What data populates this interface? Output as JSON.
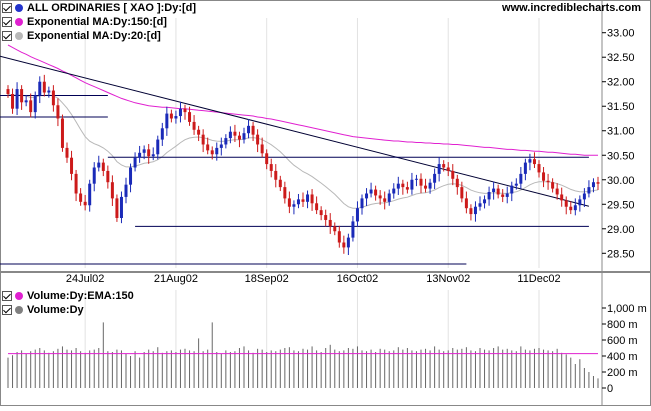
{
  "site": "www.incrediblecharts.com",
  "legend_price": [
    {
      "label": "ALL ORDINARIES [ XAO ]:Dy:[d]",
      "color": "#2233cc",
      "checked": true
    },
    {
      "label": "Exponential MA:Dy:150:[d]",
      "color": "#e020d0",
      "checked": true
    },
    {
      "label": "Exponential MA:Dy:20:[d]",
      "color": "#b8b8b8",
      "checked": true
    }
  ],
  "legend_volume": [
    {
      "label": "Volume:Dy:EMA:150",
      "color": "#e020d0",
      "checked": true
    },
    {
      "label": "Volume:Dy",
      "color": "#808080",
      "checked": true
    }
  ],
  "chart_data": [
    {
      "type": "candlestick",
      "series_name": "ALL ORDINARIES [ XAO ]",
      "ylim": [
        28.2,
        33.3
      ],
      "y_ticks": [
        "33.00",
        "32.50",
        "32.00",
        "31.50",
        "31.00",
        "30.50",
        "30.00",
        "29.50",
        "29.00",
        "28.50"
      ],
      "x_tick_labels": [
        "24Jul02",
        "21Aug02",
        "18Sep02",
        "16Oct02",
        "13Nov02",
        "11Dec02"
      ],
      "x_tick_index": [
        17,
        37,
        57,
        77,
        97,
        117
      ],
      "n_bars": 131,
      "close": [
        31.75,
        31.45,
        31.85,
        31.58,
        31.62,
        31.38,
        31.72,
        32.0,
        31.78,
        31.82,
        31.52,
        31.25,
        30.65,
        30.45,
        30.12,
        29.72,
        29.55,
        29.48,
        29.92,
        30.25,
        30.35,
        30.18,
        29.95,
        29.62,
        29.22,
        29.65,
        29.9,
        30.25,
        30.45,
        30.55,
        30.62,
        30.48,
        30.52,
        30.82,
        31.05,
        31.35,
        31.25,
        31.3,
        31.45,
        31.38,
        31.18,
        31.02,
        30.92,
        30.72,
        30.6,
        30.52,
        30.65,
        30.72,
        30.85,
        30.98,
        30.9,
        30.82,
        30.95,
        31.1,
        30.92,
        30.72,
        30.54,
        30.32,
        30.18,
        30.0,
        29.85,
        29.62,
        29.45,
        29.5,
        29.6,
        29.55,
        29.7,
        29.52,
        29.38,
        29.28,
        29.18,
        29.05,
        28.95,
        28.72,
        28.62,
        28.82,
        29.15,
        29.42,
        29.62,
        29.72,
        29.8,
        29.68,
        29.62,
        29.55,
        29.72,
        29.82,
        29.92,
        29.85,
        29.8,
        30.0,
        30.02,
        29.88,
        29.82,
        29.94,
        30.12,
        30.32,
        30.25,
        30.18,
        30.02,
        29.85,
        29.62,
        29.42,
        29.3,
        29.45,
        29.52,
        29.6,
        29.75,
        29.82,
        29.7,
        29.65,
        29.72,
        29.88,
        29.92,
        30.12,
        30.35,
        30.42,
        30.32,
        30.15,
        29.98,
        29.95,
        29.82,
        29.7,
        29.58,
        29.45,
        29.38,
        29.48,
        29.6,
        29.72,
        29.85,
        29.95,
        29.92
      ],
      "ema150": [
        32.75,
        32.7,
        32.65,
        32.6,
        32.56,
        32.51,
        32.47,
        32.43,
        32.39,
        32.35,
        32.31,
        32.27,
        32.22,
        32.18,
        32.13,
        32.08,
        32.03,
        31.98,
        31.94,
        31.9,
        31.86,
        31.82,
        31.78,
        31.74,
        31.7,
        31.66,
        31.63,
        31.6,
        31.57,
        31.55,
        31.53,
        31.51,
        31.5,
        31.49,
        31.48,
        31.48,
        31.47,
        31.46,
        31.45,
        31.45,
        31.44,
        31.43,
        31.42,
        31.41,
        31.4,
        31.39,
        31.38,
        31.37,
        31.36,
        31.35,
        31.34,
        31.33,
        31.32,
        31.31,
        31.3,
        31.28,
        31.27,
        31.25,
        31.24,
        31.22,
        31.2,
        31.18,
        31.16,
        31.14,
        31.12,
        31.1,
        31.08,
        31.06,
        31.04,
        31.02,
        31.0,
        30.98,
        30.96,
        30.94,
        30.92,
        30.9,
        30.88,
        30.87,
        30.86,
        30.85,
        30.84,
        30.83,
        30.82,
        30.81,
        30.8,
        30.79,
        30.79,
        30.78,
        30.77,
        30.77,
        30.76,
        30.76,
        30.75,
        30.75,
        30.74,
        30.74,
        30.73,
        30.73,
        30.72,
        30.72,
        30.71,
        30.7,
        30.69,
        30.68,
        30.67,
        30.66,
        30.66,
        30.65,
        30.64,
        30.63,
        30.62,
        30.62,
        30.61,
        30.6,
        30.6,
        30.59,
        30.58,
        30.58,
        30.57,
        30.56,
        30.56,
        30.55,
        30.54,
        30.53,
        30.52,
        30.52,
        30.51,
        30.5,
        30.5,
        30.5,
        30.5
      ],
      "support_levels": [
        29.05,
        30.46
      ],
      "volume": {
        "ylim": [
          0,
          1100
        ],
        "y_ticks": [
          "1,000 m",
          "800 m",
          "600 m",
          "400 m",
          "200 m",
          "0"
        ],
        "ema150": 430,
        "values": [
          380,
          410,
          450,
          470,
          430,
          460,
          480,
          500,
          470,
          440,
          460,
          490,
          520,
          480,
          470,
          500,
          460,
          440,
          470,
          480,
          500,
          820,
          460,
          450,
          480,
          470,
          430,
          400,
          460,
          380,
          450,
          480,
          460,
          510,
          440,
          460,
          470,
          450,
          480,
          490,
          470,
          460,
          620,
          460,
          480,
          820,
          450,
          430,
          470,
          450,
          460,
          500,
          520,
          470,
          440,
          490,
          480,
          450,
          470,
          460,
          480,
          500,
          510,
          470,
          460,
          490,
          480,
          520,
          470,
          450,
          500,
          540,
          480,
          460,
          470,
          500,
          490,
          520,
          470,
          460,
          480,
          450,
          490,
          480,
          460,
          470,
          510,
          480,
          500,
          470,
          460,
          480,
          490,
          470,
          520,
          480,
          460,
          470,
          500,
          480,
          490,
          510,
          470,
          460,
          500,
          480,
          470,
          500,
          520,
          480,
          490,
          470,
          460,
          520,
          480,
          470,
          490,
          500,
          480,
          470,
          460,
          490,
          440,
          420,
          380,
          300,
          360,
          250,
          200,
          150,
          120
        ]
      }
    }
  ]
}
